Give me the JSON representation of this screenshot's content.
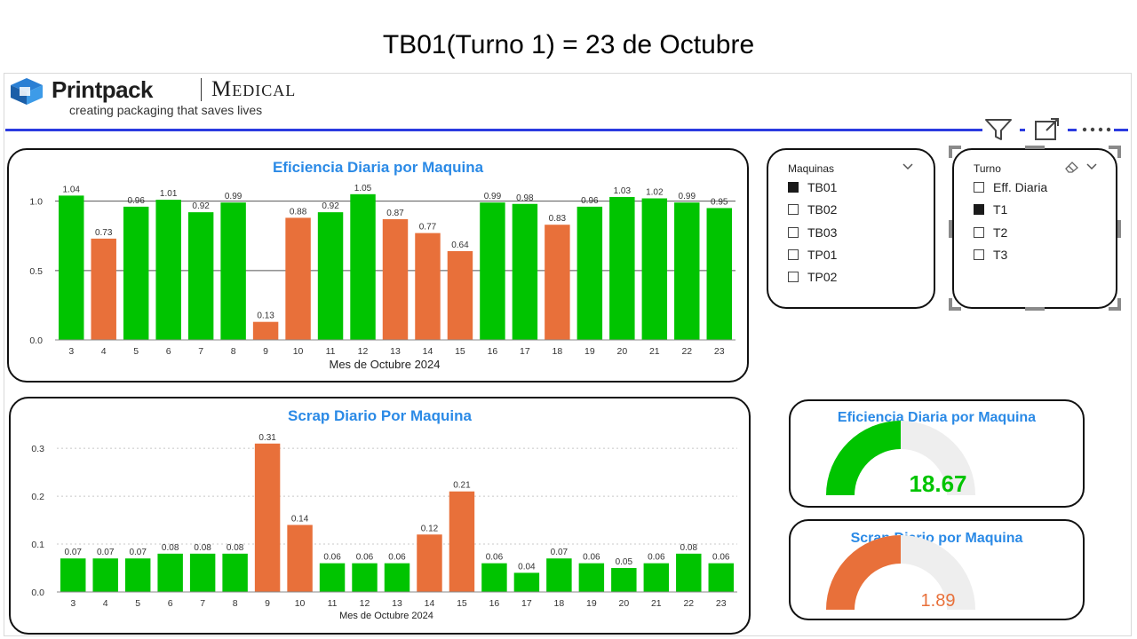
{
  "slide": {
    "title": "TB01(Turno 1) = 23 de Octubre"
  },
  "logo": {
    "brand": "Printpack",
    "division": "Medical",
    "tagline": "creating packaging that saves lives"
  },
  "colors": {
    "green": "#00c400",
    "orange": "#e8703a",
    "title_blue": "#2b8ae6",
    "rule_blue": "#2b3be0",
    "gauge_track": "#eeeeee"
  },
  "toolbar": {
    "icons": [
      "filter-icon",
      "focus-mode-icon",
      "more-options-icon"
    ]
  },
  "charts": [
    {
      "title": "Eficiencia Diaria por Maquina",
      "xlabel": "Mes de Octubre 2024",
      "yticks": [
        "0.0",
        "0.5",
        "1.0"
      ]
    },
    {
      "title": "Scrap Diario Por Maquina",
      "xlabel": "Mes de Octubre 2024",
      "yticks": [
        "0.0",
        "0.1",
        "0.2",
        "0.3"
      ]
    }
  ],
  "chart_data": [
    {
      "type": "bar",
      "title": "Eficiencia Diaria por Maquina",
      "xlabel": "Mes de Octubre 2024",
      "ylabel": "",
      "categories": [
        "3",
        "4",
        "5",
        "6",
        "7",
        "8",
        "9",
        "10",
        "11",
        "12",
        "13",
        "14",
        "15",
        "16",
        "17",
        "18",
        "19",
        "20",
        "21",
        "22",
        "23"
      ],
      "values": [
        1.04,
        0.73,
        0.96,
        1.01,
        0.92,
        0.99,
        0.13,
        0.88,
        0.92,
        1.05,
        0.87,
        0.77,
        0.64,
        0.99,
        0.98,
        0.83,
        0.96,
        1.03,
        1.02,
        0.99,
        0.95
      ],
      "labels": [
        "1.04",
        "0.73",
        "0.96",
        "1.01",
        "0.92",
        "0.99",
        "0.13",
        "0.88",
        "0.92",
        "1.05",
        "0.87",
        "0.77",
        "0.64",
        "0.99",
        "0.98",
        "0.83",
        "0.96",
        "1.03",
        "1.02",
        "0.99",
        "0.95"
      ],
      "bar_colors": [
        "green",
        "orange",
        "green",
        "green",
        "green",
        "green",
        "orange",
        "orange",
        "green",
        "green",
        "orange",
        "orange",
        "orange",
        "green",
        "green",
        "orange",
        "green",
        "green",
        "green",
        "green",
        "green"
      ],
      "ylim": [
        0,
        1.1
      ],
      "yticks": [
        0,
        0.5,
        1.0
      ],
      "grid": "solid"
    },
    {
      "type": "bar",
      "title": "Scrap Diario Por Maquina",
      "xlabel": "Mes de Octubre 2024",
      "ylabel": "",
      "categories": [
        "3",
        "4",
        "5",
        "6",
        "7",
        "8",
        "9",
        "10",
        "11",
        "12",
        "13",
        "14",
        "15",
        "16",
        "17",
        "18",
        "19",
        "20",
        "21",
        "22",
        "23"
      ],
      "values": [
        0.07,
        0.07,
        0.07,
        0.08,
        0.08,
        0.08,
        0.31,
        0.14,
        0.06,
        0.06,
        0.06,
        0.12,
        0.21,
        0.06,
        0.04,
        0.07,
        0.06,
        0.05,
        0.06,
        0.08,
        0.06
      ],
      "labels": [
        "0.07",
        "0.07",
        "0.07",
        "0.08",
        "0.08",
        "0.08",
        "0.31",
        "0.14",
        "0.06",
        "0.06",
        "0.06",
        "0.12",
        "0.21",
        "0.06",
        "0.04",
        "0.07",
        "0.06",
        "0.05",
        "0.06",
        "0.08",
        "0.06"
      ],
      "bar_colors": [
        "green",
        "green",
        "green",
        "green",
        "green",
        "green",
        "orange",
        "orange",
        "green",
        "green",
        "green",
        "orange",
        "orange",
        "green",
        "green",
        "green",
        "green",
        "green",
        "green",
        "green",
        "green"
      ],
      "ylim": [
        0,
        0.33
      ],
      "yticks": [
        0,
        0.1,
        0.2,
        0.3
      ],
      "grid": "dotted"
    }
  ],
  "slicers": {
    "maquinas": {
      "header": "Maquinas",
      "items": [
        {
          "label": "TB01",
          "checked": true
        },
        {
          "label": "TB02",
          "checked": false
        },
        {
          "label": "TB03",
          "checked": false
        },
        {
          "label": "TP01",
          "checked": false
        },
        {
          "label": "TP02",
          "checked": false
        }
      ]
    },
    "turno": {
      "header": "Turno",
      "items": [
        {
          "label": "Eff. Diaria",
          "checked": false
        },
        {
          "label": "T1",
          "checked": true
        },
        {
          "label": "T2",
          "checked": false
        },
        {
          "label": "T3",
          "checked": false
        }
      ]
    }
  },
  "gauges": [
    {
      "title": "Eficiencia Diaria por Maquina",
      "value": "18.67",
      "fill_fraction": 0.5,
      "color": "#00c400"
    },
    {
      "title": "Scrap Diario por Maquina",
      "value": "1.89",
      "fill_fraction": 0.5,
      "color": "#e8703a"
    }
  ]
}
